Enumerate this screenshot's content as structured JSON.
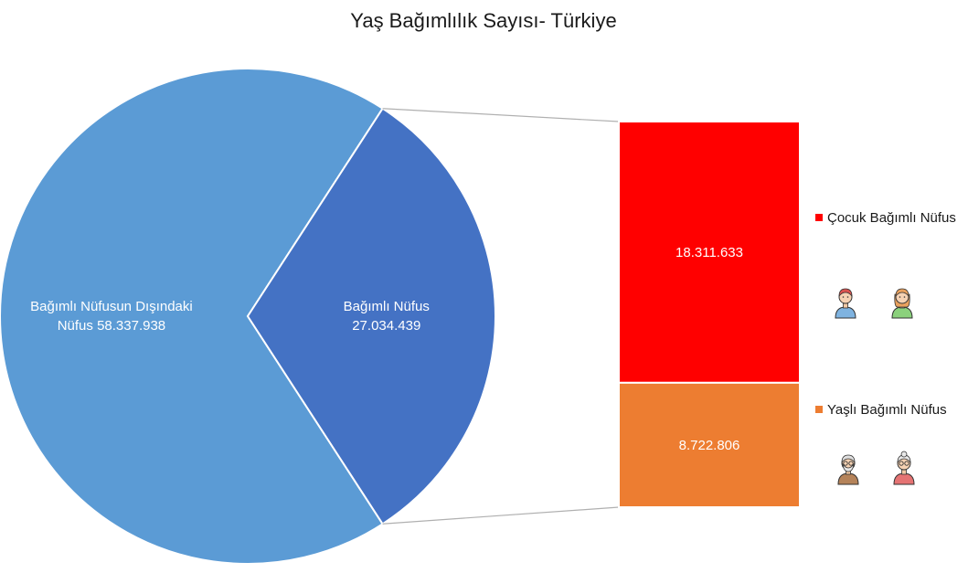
{
  "chart_data": {
    "type": "pie",
    "title": "Yaş Bağımlılık Sayısı- Türkiye",
    "pie": {
      "slices": [
        {
          "key": "independent",
          "label_line1": "Bağımlı Nüfusun Dışındaki",
          "label_line2": "Nüfus 58.337.938",
          "value": 58337938,
          "color": "#5B9BD5"
        },
        {
          "key": "dependent",
          "label_line1": "Bağımlı Nüfus",
          "label_line2": "27.034.439",
          "value": 27034439,
          "color": "#4472C4"
        }
      ]
    },
    "breakdown": {
      "type": "stacked_bar",
      "parent": "dependent",
      "segments": [
        {
          "key": "child",
          "label": "Çocuk Bağımlı Nüfus",
          "value": 18311633,
          "value_label": "18.311.633",
          "color": "#FF0000"
        },
        {
          "key": "elderly",
          "label": "Yaşlı Bağımlı Nüfus",
          "value": 8722806,
          "value_label": "8.722.806",
          "color": "#ED7D31"
        }
      ]
    },
    "legend_position": "right"
  },
  "icons": {
    "child": [
      "boy-icon",
      "girl-icon"
    ],
    "elderly": [
      "old-man-icon",
      "old-woman-icon"
    ]
  }
}
